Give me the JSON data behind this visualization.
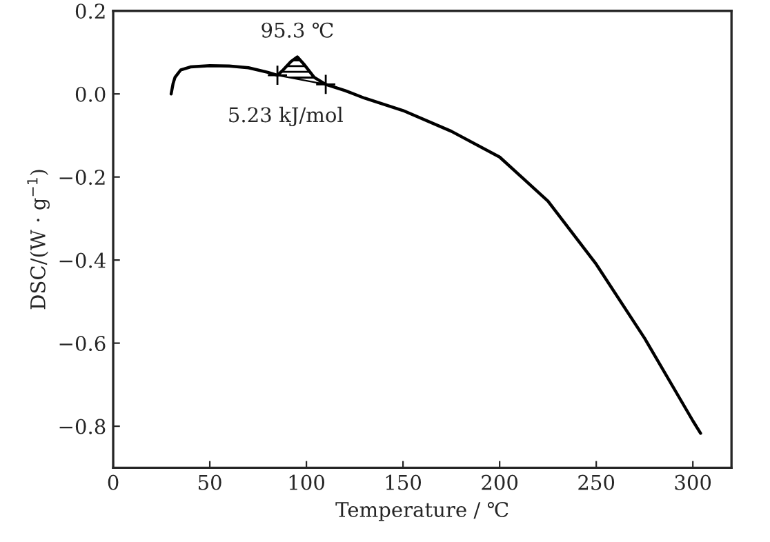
{
  "chart_data": {
    "type": "line",
    "xlabel": "Temperature / ℃",
    "ylabel": "DSC/(W · g$^{−1}$)",
    "series": [
      {
        "color": "#000000",
        "x": [
          30,
          31,
          32,
          35,
          40,
          50,
          60,
          70,
          80,
          85,
          88,
          92,
          95.3,
          99,
          104,
          110,
          120,
          130,
          150,
          175,
          200,
          225,
          250,
          275,
          300,
          304
        ],
        "values": [
          0.0,
          0.025,
          0.04,
          0.058,
          0.065,
          0.068,
          0.067,
          0.063,
          0.052,
          0.045,
          0.058,
          0.078,
          0.089,
          0.07,
          0.04,
          0.023,
          0.008,
          -0.01,
          -0.04,
          -0.09,
          -0.152,
          -0.258,
          -0.41,
          -0.588,
          -0.787,
          -0.817
        ]
      }
    ],
    "annotations": [
      {
        "text": "95.3 ℃",
        "x": 95.3,
        "y": 0.089
      },
      "5.23 kJ/mol"
    ],
    "xlim": [
      0,
      320
    ],
    "xticks": [
      0,
      50,
      100,
      150,
      200,
      250,
      300
    ],
    "ylim": [
      -0.9,
      0.2
    ],
    "yticks": [
      {
        "value": 0.2,
        "label": "0.2"
      },
      {
        "value": 0.0,
        "label": "0.0"
      },
      {
        "value": -0.2,
        "label": "−0.2"
      },
      {
        "value": -0.4,
        "label": "−0.4"
      },
      {
        "value": -0.6,
        "label": "−0.6"
      },
      {
        "value": -0.8,
        "label": "−0.8"
      }
    ],
    "grid": false,
    "marker": "none",
    "line_style": "solid"
  }
}
